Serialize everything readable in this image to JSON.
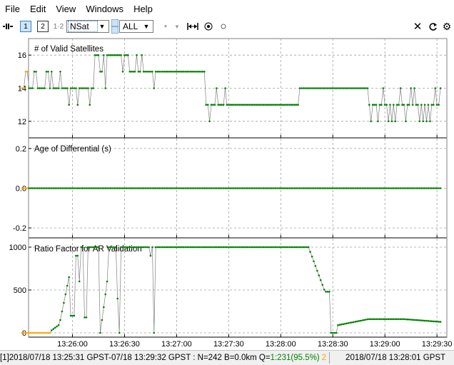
{
  "menu": [
    "File",
    "Edit",
    "View",
    "Windows",
    "Help"
  ],
  "toolbar": {
    "layout_1": "1",
    "layout_2": "2",
    "layout_12": "1·2",
    "plot_type": "NSat",
    "sat_filter": "ALL"
  },
  "panels": {
    "nsat": {
      "title": "# of Valid Satellites"
    },
    "age": {
      "title": "Age of Differential (s)"
    },
    "ratio": {
      "title": "Ratio Factor for AR Validation"
    }
  },
  "colors": {
    "fix": "#008000",
    "float": "#ffa500",
    "line": "#808080",
    "grid": "#a0a0a0"
  },
  "chart_data": [
    {
      "type": "scatter",
      "title": "# of Valid Satellites",
      "ylim": [
        11,
        17
      ],
      "yticks": [
        12,
        14,
        16
      ],
      "xticks": [
        "13:26:00",
        "13:26:30",
        "13:27:00",
        "13:27:30",
        "13:28:00",
        "13:28:30",
        "13:29:00",
        "13:29:30"
      ],
      "x_start": "13:25:31",
      "x_end": "13:29:32",
      "series": [
        {
          "name": "",
          "values_q": "piecewise-approx"
        }
      ]
    },
    {
      "type": "scatter",
      "title": "Age of Differential (s)",
      "ylim": [
        -0.25,
        0.25
      ],
      "yticks": [
        0.2,
        0.0,
        -0.2
      ],
      "xticks": [
        "13:26:00",
        "13:26:30",
        "13:27:00",
        "13:27:30",
        "13:28:00",
        "13:28:30",
        "13:29:00",
        "13:29:30"
      ]
    },
    {
      "type": "scatter",
      "title": "Ratio Factor for AR Validation",
      "ylim": [
        -50,
        1100
      ],
      "yticks": [
        0,
        500,
        1000
      ],
      "xticks": [
        "13:26:00",
        "13:26:30",
        "13:27:00",
        "13:27:30",
        "13:28:00",
        "13:28:30",
        "13:29:00",
        "13:29:30"
      ]
    }
  ],
  "status": {
    "left_prefix": "[1]2018/07/18 13:25:31 GPST-07/18 13:29:32 GPST : N=242 B=0.0km Q=",
    "q_value": "1:231(95.5%)",
    "q_extra": "2",
    "right": "2018/07/18 13:28:01 GPST"
  }
}
